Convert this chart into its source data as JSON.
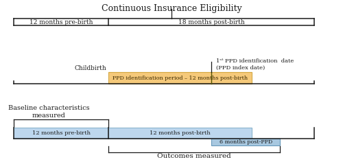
{
  "title": "Continuous Insurance Eligibility",
  "orange_color": "#F5C97A",
  "orange_edge": "#d4a843",
  "blue_color": "#BDD7EE",
  "blue_edge": "#8ab4cc",
  "darker_blue": "#A8C8E0",
  "darker_blue_edge": "#6699bb",
  "text_color": "#1a1a1a",
  "line_color": "#1a1a1a",
  "background": "#ffffff",
  "row1_label_left": "12 months pre-birth",
  "row1_label_right": "18 months post-birth",
  "row2_childbirth": "Childbirth",
  "row2_ppd_line1": "1ˢᵗ PPD identification  date",
  "row2_ppd_line2": "(PPD index date)",
  "row2_ppd_bar_label": "PPD identification period – 12 months post-birth",
  "row3_label_blue1": "12 months pre-birth",
  "row3_label_blue2": "12 months post-birth",
  "row3_label_darker": "6 months post-PPD",
  "baseline_label": "Baseline characteristics\nmeasured",
  "outcomes_label": "Outcomes measured"
}
